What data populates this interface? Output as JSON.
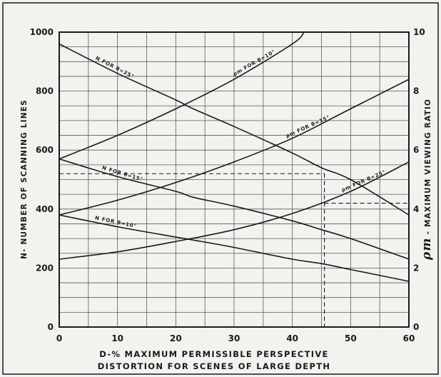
{
  "chart_data": {
    "type": "line",
    "title": "",
    "xlabel_lines": [
      "D-% MAXIMUM PERMISSIBLE PERSPECTIVE",
      "DISTORTION FOR SCENES OF LARGE DEPTH"
    ],
    "ylabel_left": "N- NUMBER OF SCANNING LINES",
    "ylabel_right": "- MAXIMUM VIEWING RATIO",
    "ylabel_right_symbol": "ρm",
    "xlim": [
      0,
      60
    ],
    "ylim_left": [
      0,
      1000
    ],
    "ylim_right": [
      0,
      10
    ],
    "grid": true,
    "x_ticks": [
      "0",
      "10",
      "20",
      "30",
      "40",
      "50",
      "60"
    ],
    "y_left_ticks": [
      "0",
      "200",
      "400",
      "600",
      "800",
      "1000"
    ],
    "y_right_ticks": [
      "0",
      "2",
      "4",
      "6",
      "8",
      "10"
    ],
    "series": [
      {
        "name": "N FOR θ=25°",
        "axis": "left",
        "x": [
          0,
          10,
          20,
          23,
          30,
          40,
          45,
          50,
          60
        ],
        "values": [
          960,
          860,
          770,
          740,
          680,
          590,
          540,
          500,
          380
        ]
      },
      {
        "name": "N FOR θ=15°",
        "axis": "left",
        "x": [
          0,
          10,
          20,
          23,
          30,
          40,
          45,
          50,
          60
        ],
        "values": [
          570,
          510,
          460,
          440,
          410,
          360,
          330,
          300,
          230
        ]
      },
      {
        "name": "N FOR θ=10°",
        "axis": "left",
        "x": [
          0,
          10,
          20,
          23,
          30,
          40,
          45,
          50,
          60
        ],
        "values": [
          380,
          340,
          305,
          295,
          270,
          230,
          215,
          195,
          155
        ]
      },
      {
        "name": "ρm FOR θ=10°",
        "axis": "right",
        "x": [
          0,
          10,
          20,
          30,
          40,
          42
        ],
        "values": [
          5.7,
          6.5,
          7.4,
          8.4,
          9.6,
          10.0
        ]
      },
      {
        "name": "ρm FOR θ=15°",
        "axis": "right",
        "x": [
          0,
          10,
          20,
          30,
          40,
          50,
          60
        ],
        "values": [
          3.8,
          4.3,
          4.9,
          5.6,
          6.4,
          7.4,
          8.4
        ]
      },
      {
        "name": "ρm FOR θ=25°",
        "axis": "right",
        "x": [
          0,
          10,
          20,
          30,
          40,
          50,
          60
        ],
        "values": [
          2.3,
          2.55,
          2.9,
          3.3,
          3.85,
          4.6,
          5.6
        ]
      }
    ],
    "annotations": [
      {
        "type": "dashed-reference",
        "from_series": "N FOR θ=15°",
        "x": 45.5,
        "y_left": 520,
        "y_right": 4.2
      }
    ],
    "curve_labels": [
      {
        "text": "N FOR θ=25°",
        "series": 0
      },
      {
        "text": "N FOR θ=15°",
        "series": 1
      },
      {
        "text": "N FOR θ=10°",
        "series": 2
      },
      {
        "text": "ρm FOR θ=10°",
        "series": 3
      },
      {
        "text": "ρm FOR θ=15°",
        "series": 4
      },
      {
        "text": "ρm FOR θ=25°",
        "series": 5
      }
    ],
    "colors": {
      "background": "#f3f2ee",
      "ink": "#1a1a1a",
      "grid": "#5a5a5a"
    }
  }
}
